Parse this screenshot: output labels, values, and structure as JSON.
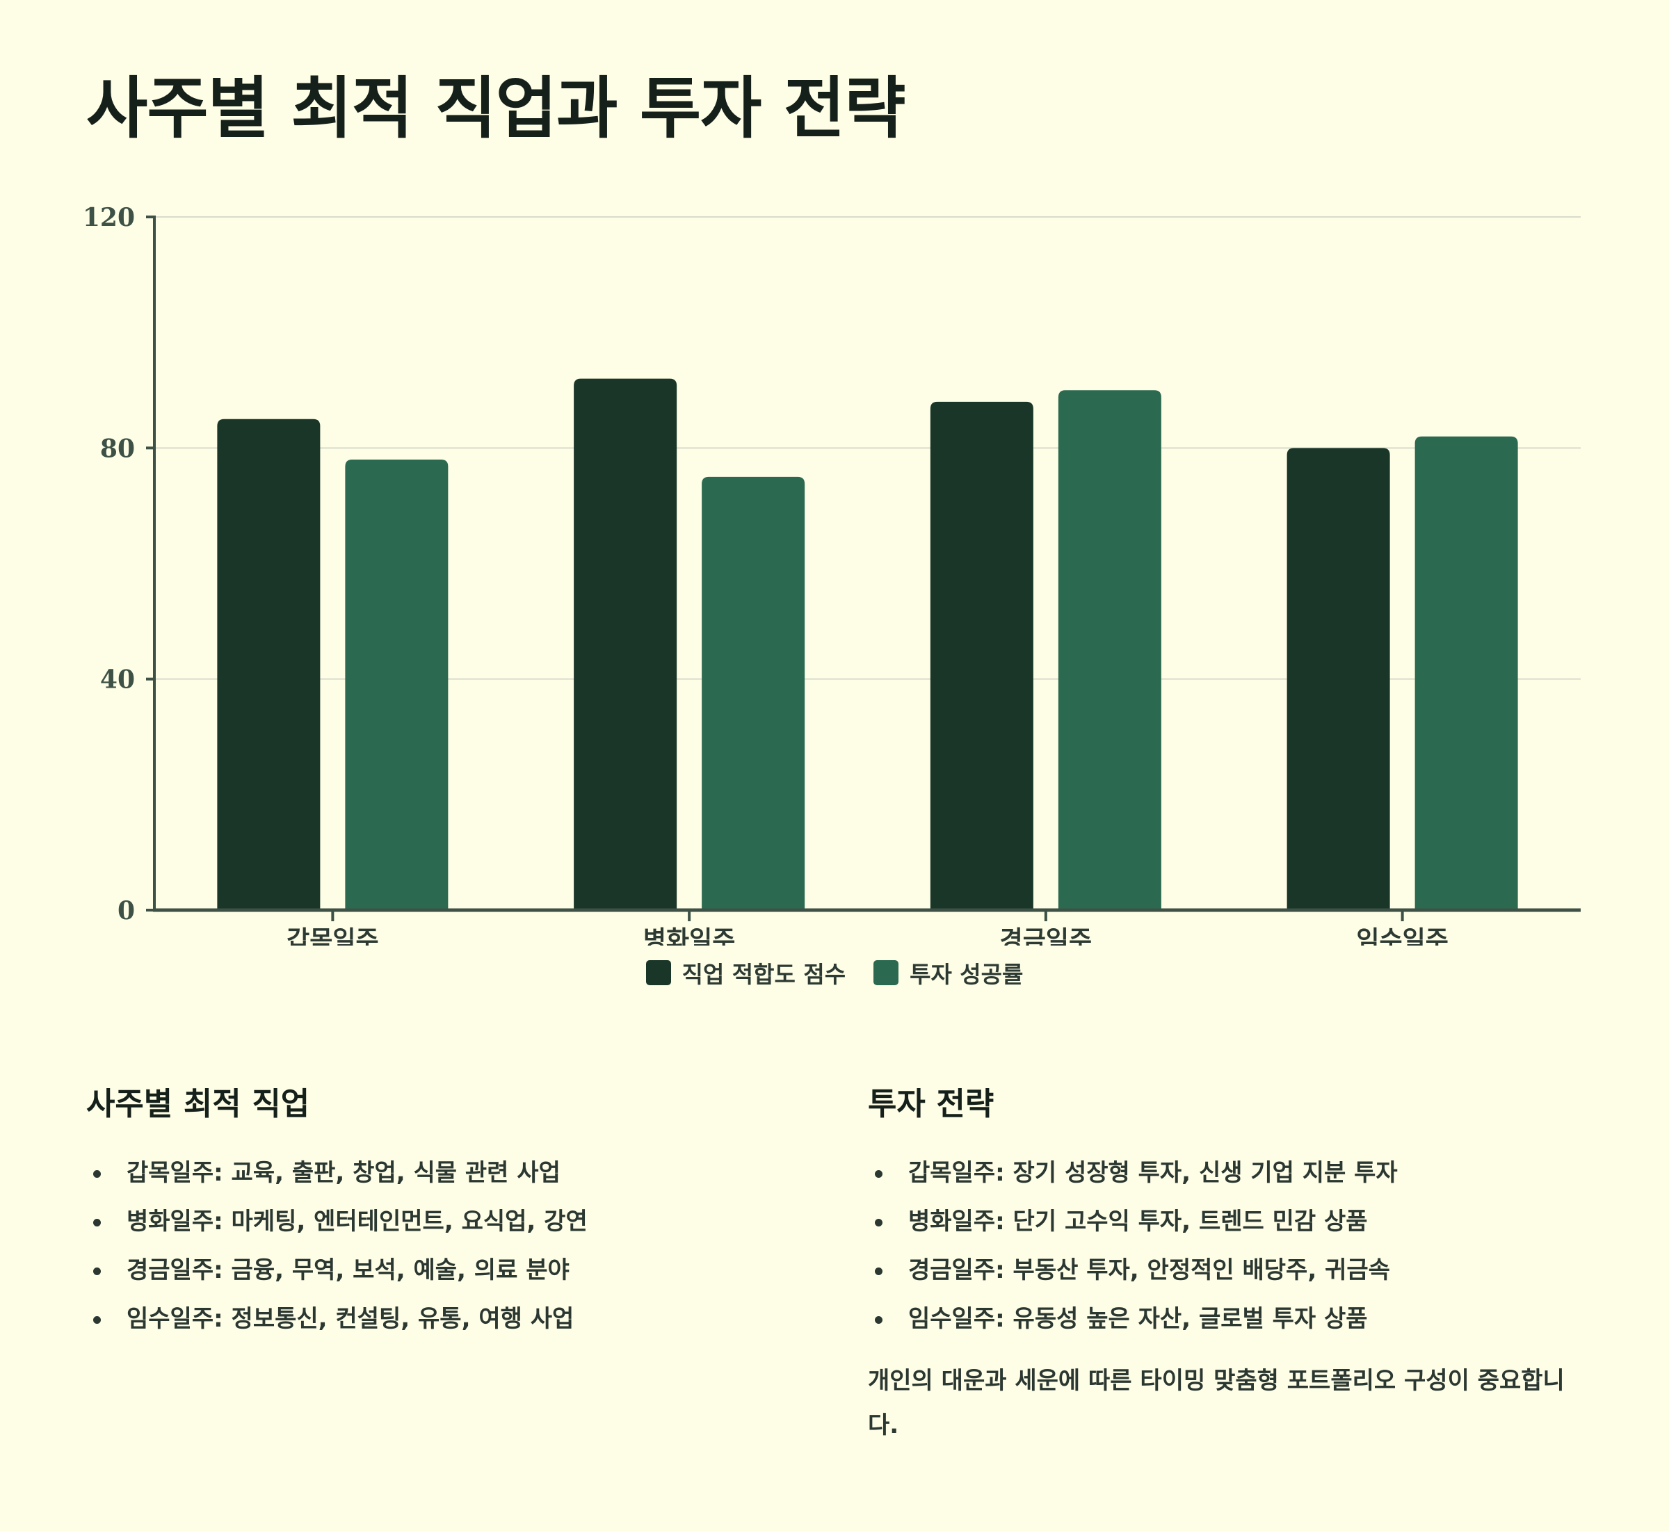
{
  "page": {
    "title": "사주별 최적 직업과 투자 전략"
  },
  "chart_data": {
    "type": "bar",
    "categories": [
      "갑목일주",
      "병화일주",
      "경금일주",
      "임수일주"
    ],
    "series": [
      {
        "name": "직업 적합도 점수",
        "values": [
          85,
          92,
          88,
          80
        ],
        "color": "#193628"
      },
      {
        "name": "투자 성공률",
        "values": [
          78,
          75,
          90,
          82
        ],
        "color": "#2b6a50"
      }
    ],
    "ylim": [
      0,
      120
    ],
    "yticks": [
      0,
      40,
      80,
      120
    ],
    "grid": true,
    "legend_position": "bottom-center",
    "xlabel": "",
    "ylabel": ""
  },
  "careers": {
    "heading": "사주별 최적 직업",
    "items": [
      "갑목일주: 교육, 출판, 창업, 식물 관련 사업",
      "병화일주: 마케팅, 엔터테인먼트, 요식업, 강연",
      "경금일주: 금융, 무역, 보석, 예술, 의료 분야",
      "임수일주: 정보통신, 컨설팅, 유통, 여행 사업"
    ]
  },
  "investment": {
    "heading": "투자 전략",
    "items": [
      "갑목일주: 장기 성장형 투자, 신생 기업 지분 투자",
      "병화일주: 단기 고수익 투자, 트렌드 민감 상품",
      "경금일주: 부동산 투자, 안정적인 배당주, 귀금속",
      "임수일주: 유동성 높은 자산, 글로벌 투자 상품"
    ],
    "note": "개인의 대운과 세운에 따른 타이밍 맞춤형 포트폴리오 구성이 중요합니다."
  }
}
